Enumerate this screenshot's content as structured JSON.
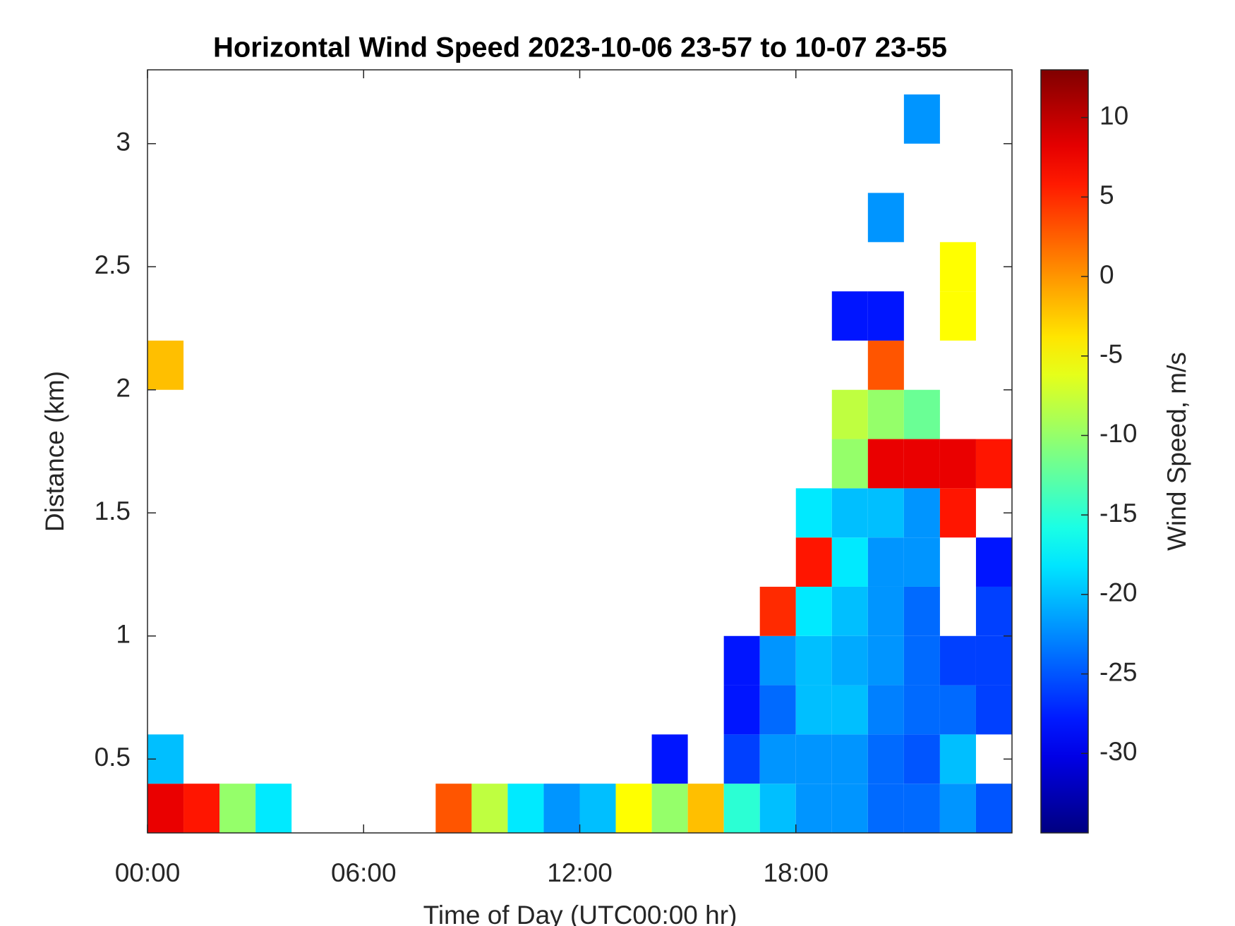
{
  "chart_data": {
    "type": "heatmap",
    "title": "Horizontal Wind Speed 2023-10-06 23-57 to 10-07 23-55",
    "x_label": "Time of Day (UTC00:00 hr)",
    "y_label": "Distance (km)",
    "colorbar_label": "Wind Speed, m/s",
    "colormap": "jet",
    "x": [
      0.5,
      1.5,
      2.5,
      3.5,
      4.5,
      5.5,
      6.5,
      7.5,
      8.5,
      9.5,
      10.5,
      11.5,
      12.5,
      13.5,
      14.5,
      15.5,
      16.5,
      17.5,
      18.5,
      19.5,
      20.5,
      21.5,
      22.5,
      23.5
    ],
    "y": [
      0.3,
      0.5,
      0.7,
      0.9,
      1.1,
      1.3,
      1.5,
      1.7,
      1.9,
      2.1,
      2.3,
      2.5,
      2.7,
      2.9,
      3.1
    ],
    "z": [
      [
        8,
        6,
        -10,
        -18,
        null,
        null,
        null,
        null,
        3,
        -8,
        -18,
        -22,
        -20,
        -5,
        -10,
        -2,
        -15,
        -20,
        -22,
        -22,
        -24,
        -24,
        -22,
        -25
      ],
      [
        -20,
        null,
        null,
        null,
        null,
        null,
        null,
        null,
        null,
        null,
        null,
        null,
        null,
        null,
        -28,
        null,
        -26,
        -22,
        -22,
        -22,
        -24,
        -25,
        -20,
        null
      ],
      [
        null,
        null,
        null,
        null,
        null,
        null,
        null,
        null,
        null,
        null,
        null,
        null,
        null,
        null,
        null,
        null,
        -28,
        -24,
        -20,
        -20,
        -23,
        -24,
        -24,
        -26
      ],
      [
        null,
        null,
        null,
        null,
        null,
        null,
        null,
        null,
        null,
        null,
        null,
        null,
        null,
        null,
        null,
        null,
        -28,
        -22,
        -20,
        -21,
        -22,
        -24,
        -26,
        -26
      ],
      [
        null,
        null,
        null,
        null,
        null,
        null,
        null,
        null,
        null,
        null,
        null,
        null,
        null,
        null,
        null,
        null,
        null,
        5,
        -18,
        -20,
        -22,
        -24,
        null,
        -26
      ],
      [
        null,
        null,
        null,
        null,
        null,
        null,
        null,
        null,
        null,
        null,
        null,
        null,
        null,
        null,
        null,
        null,
        null,
        null,
        6,
        -18,
        -22,
        -22,
        null,
        -28
      ],
      [
        null,
        null,
        null,
        null,
        null,
        null,
        null,
        null,
        null,
        null,
        null,
        null,
        null,
        null,
        null,
        null,
        null,
        null,
        -18,
        -20,
        -20,
        -22,
        6,
        null
      ],
      [
        null,
        null,
        null,
        null,
        null,
        null,
        null,
        null,
        null,
        null,
        null,
        null,
        null,
        null,
        null,
        null,
        null,
        null,
        null,
        -10,
        8,
        8,
        8,
        6
      ],
      [
        null,
        null,
        null,
        null,
        null,
        null,
        null,
        null,
        null,
        null,
        null,
        null,
        null,
        null,
        null,
        null,
        null,
        null,
        null,
        -8,
        -10,
        -12,
        null,
        null
      ],
      [
        -2,
        null,
        null,
        null,
        null,
        null,
        null,
        null,
        null,
        null,
        null,
        null,
        null,
        null,
        null,
        null,
        null,
        null,
        null,
        null,
        3,
        null,
        null,
        null
      ],
      [
        null,
        null,
        null,
        null,
        null,
        null,
        null,
        null,
        null,
        null,
        null,
        null,
        null,
        null,
        null,
        null,
        null,
        null,
        null,
        -28,
        -28,
        null,
        -5,
        null
      ],
      [
        null,
        null,
        null,
        null,
        null,
        null,
        null,
        null,
        null,
        null,
        null,
        null,
        null,
        null,
        null,
        null,
        null,
        null,
        null,
        null,
        null,
        null,
        -5,
        null
      ],
      [
        null,
        null,
        null,
        null,
        null,
        null,
        null,
        null,
        null,
        null,
        null,
        null,
        null,
        null,
        null,
        null,
        null,
        null,
        null,
        null,
        -22,
        null,
        null,
        null
      ],
      [
        null,
        null,
        null,
        null,
        null,
        null,
        null,
        null,
        null,
        null,
        null,
        null,
        null,
        null,
        null,
        null,
        null,
        null,
        null,
        null,
        null,
        null,
        null,
        null
      ],
      [
        null,
        null,
        null,
        null,
        null,
        null,
        null,
        null,
        null,
        null,
        null,
        null,
        null,
        null,
        null,
        null,
        null,
        null,
        null,
        null,
        null,
        -22,
        null,
        null
      ]
    ],
    "xlim": [
      0,
      24
    ],
    "ylim": [
      0.2,
      3.3
    ],
    "clim": [
      -35,
      13
    ],
    "xticks": [
      {
        "value": 0,
        "label": "00:00"
      },
      {
        "value": 6,
        "label": "06:00"
      },
      {
        "value": 12,
        "label": "12:00"
      },
      {
        "value": 18,
        "label": "18:00"
      }
    ],
    "yticks": [
      0.5,
      1,
      1.5,
      2,
      2.5,
      3
    ],
    "cticks": [
      -30,
      -25,
      -20,
      -15,
      -10,
      -5,
      0,
      5,
      10
    ]
  }
}
